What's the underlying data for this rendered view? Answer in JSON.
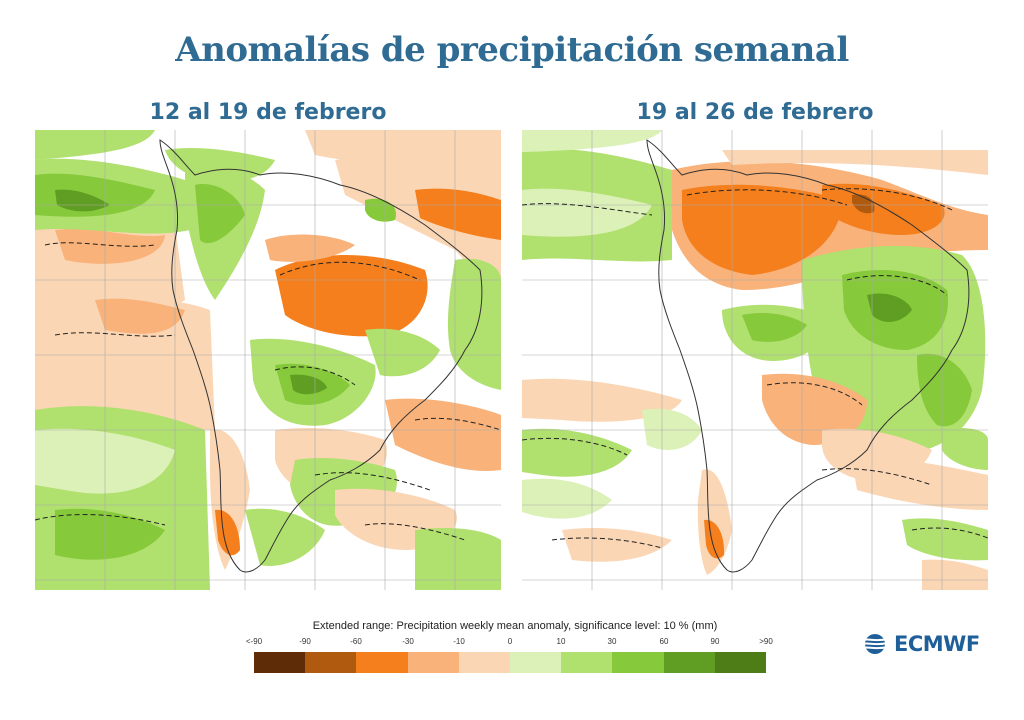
{
  "title": "Anomalías de precipitación semanal",
  "panels": [
    {
      "title": "12 al 19 de febrero"
    },
    {
      "title": "19 al 26 de febrero"
    }
  ],
  "legend": {
    "caption": "Extended range: Precipitation weekly mean anomaly, significance level: 10 % (mm)",
    "ticks": [
      "<-90",
      "-90",
      "-60",
      "-30",
      "-10",
      "0",
      "10",
      "30",
      "60",
      "90",
      ">90"
    ],
    "colors": [
      "#5e2c06",
      "#b05a10",
      "#f47f1c",
      "#f8b27a",
      "#fbd6b4",
      "#dcf1b8",
      "#b0e06e",
      "#86c93a",
      "#5f9e22",
      "#4e7d18"
    ]
  },
  "logo": {
    "text": "ECMWF"
  }
}
